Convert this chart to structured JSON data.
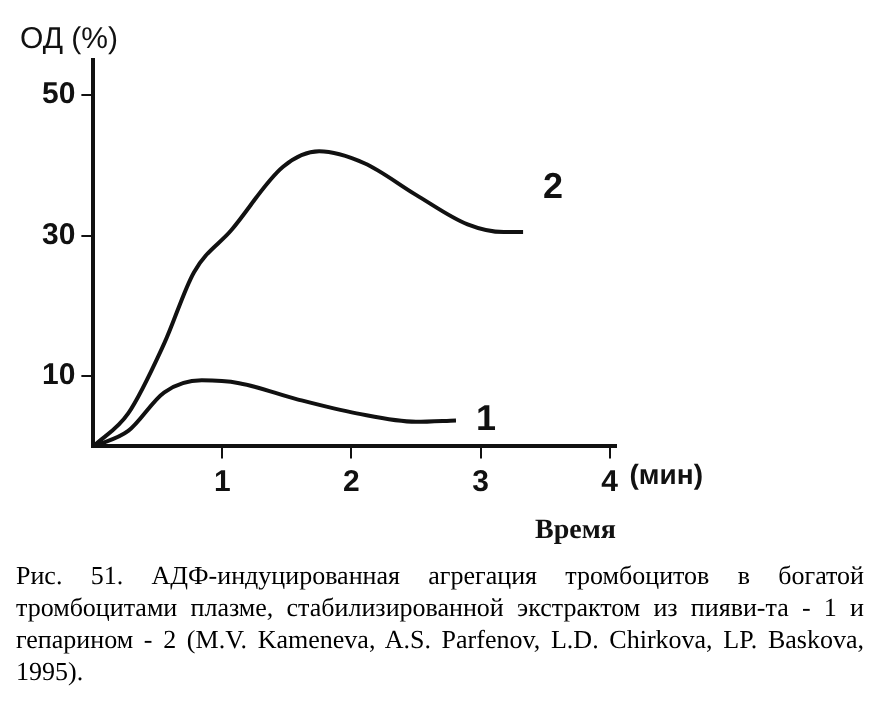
{
  "chart_data": {
    "type": "line",
    "ylabel": "ОД (%)",
    "xlabel": "Время",
    "xlim": [
      0,
      4.05
    ],
    "ylim": [
      0,
      55
    ],
    "xticks": [
      1,
      2,
      3,
      4
    ],
    "yticks": [
      10,
      30,
      50
    ],
    "grid": false,
    "legend": false,
    "marker": "none",
    "line_style": "solid",
    "series": [
      {
        "name": "1",
        "color": "#111111",
        "x": [
          0,
          0.27,
          0.55,
          0.84,
          1.13,
          1.58,
          2.04,
          2.5,
          2.81
        ],
        "values": [
          0,
          2.2,
          7.7,
          9.4,
          9,
          6.7,
          4.7,
          3.5,
          3.7
        ]
      },
      {
        "name": "2",
        "color": "#111111",
        "x": [
          0,
          0.27,
          0.55,
          0.78,
          1.07,
          1.47,
          1.75,
          2.1,
          2.5,
          2.9,
          3.18,
          3.33
        ],
        "values": [
          0,
          4.7,
          14.7,
          24.8,
          30.8,
          39.8,
          42,
          40.3,
          35.8,
          31.6,
          30.5,
          30.5
        ]
      }
    ],
    "annotations": [
      "(мин)",
      "Рис. 51. АДФ-индуцированная агрегация тромбоцитов в богатой тромбоцитами плазме, стабилизированной экстрактом из пияви-та - 1 и гепарином - 2 (M.V. Kameneva, A.S. Parfenov, L.D. Chirkova, LP. Baskova, 1995)."
    ]
  }
}
